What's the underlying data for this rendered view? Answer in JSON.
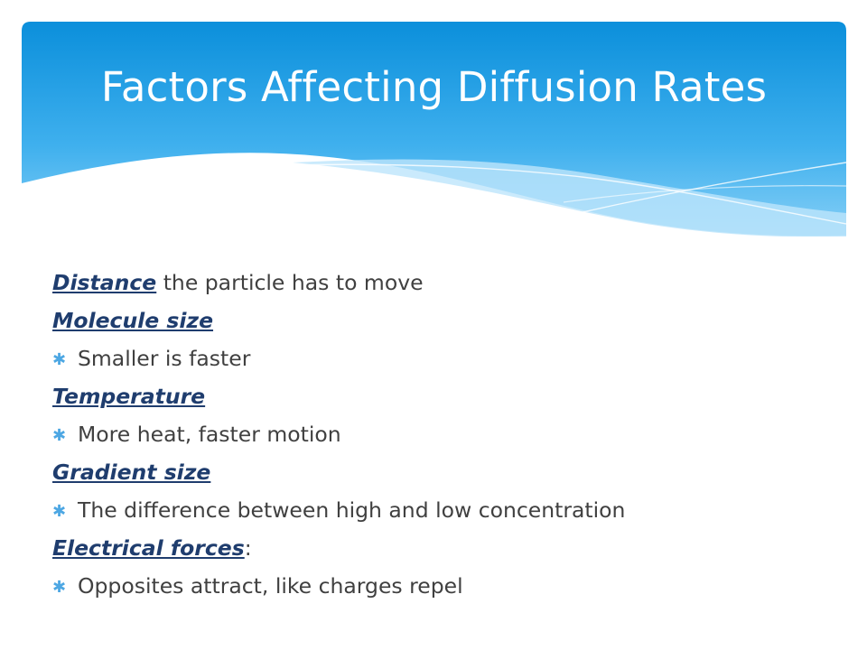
{
  "slide": {
    "title": "Factors Affecting Diffusion Rates",
    "colors": {
      "header_top": "#0c91dc",
      "header_bottom": "#82cdf6",
      "heading_text": "#1f3d6e",
      "body_text": "#404040",
      "bullet": "#4da7e3"
    },
    "items": [
      {
        "term": "Distance",
        "rest": " the particle has to move",
        "bullet": ""
      },
      {
        "term": "Molecule size",
        "rest": "",
        "bullet": "Smaller is faster"
      },
      {
        "term": "Temperature",
        "rest": "",
        "bullet": "More heat, faster motion"
      },
      {
        "term": "Gradient size",
        "rest": "",
        "bullet": "The difference between high and low concentration"
      },
      {
        "term": "Electrical forces",
        "rest": ":",
        "bullet": "Opposites attract, like charges repel"
      }
    ],
    "bullet_icon": "asterisk-bullet-icon"
  }
}
